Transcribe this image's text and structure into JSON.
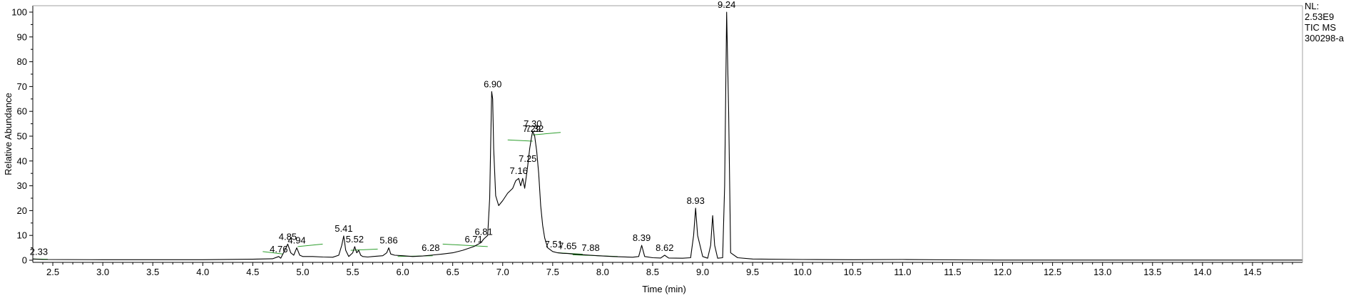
{
  "chart_data": {
    "type": "line",
    "title": "",
    "xlabel": "Time (min)",
    "ylabel": "Relative Abundance",
    "xlim": [
      2.3,
      15.0
    ],
    "ylim": [
      0,
      100
    ],
    "x_ticks": [
      2.5,
      3.0,
      3.5,
      4.0,
      4.5,
      5.0,
      5.5,
      6.0,
      6.5,
      7.0,
      7.5,
      8.0,
      8.5,
      9.0,
      9.5,
      10.0,
      10.5,
      11.0,
      11.5,
      12.0,
      12.5,
      13.0,
      13.5,
      14.0,
      14.5
    ],
    "x_tick_labels": [
      "2.5",
      "3.0",
      "3.5",
      "4.0",
      "4.5",
      "5.0",
      "5.5",
      "6.0",
      "6.5",
      "7.0",
      "7.5",
      "8.0",
      "8.5",
      "9.0",
      "9.5",
      "10.0",
      "10.5",
      "11.0",
      "11.5",
      "12.0",
      "12.5",
      "13.0",
      "13.5",
      "14.0",
      "14.5"
    ],
    "y_ticks": [
      0,
      10,
      20,
      30,
      40,
      50,
      60,
      70,
      80,
      90,
      100
    ],
    "y_tick_labels": [
      "0",
      "10",
      "20",
      "30",
      "40",
      "50",
      "60",
      "70",
      "80",
      "90",
      "100"
    ],
    "grid": false,
    "series": [
      {
        "x": [
          2.3,
          2.4,
          3.0,
          4.0,
          4.5,
          4.7,
          4.76,
          4.78,
          4.82,
          4.85,
          4.88,
          4.91,
          4.94,
          4.97,
          5.0,
          5.1,
          5.2,
          5.3,
          5.36,
          5.39,
          5.41,
          5.43,
          5.46,
          5.5,
          5.52,
          5.54,
          5.56,
          5.58,
          5.6,
          5.65,
          5.7,
          5.8,
          5.84,
          5.86,
          5.88,
          5.92,
          6.0,
          6.1,
          6.2,
          6.28,
          6.4,
          6.5,
          6.6,
          6.71,
          6.78,
          6.81,
          6.85,
          6.87,
          6.89,
          6.9,
          6.91,
          6.93,
          6.96,
          7.0,
          7.05,
          7.1,
          7.13,
          7.16,
          7.18,
          7.2,
          7.22,
          7.25,
          7.27,
          7.29,
          7.3,
          7.32,
          7.34,
          7.36,
          7.38,
          7.4,
          7.42,
          7.45,
          7.5,
          7.55,
          7.6,
          7.65,
          7.7,
          7.8,
          7.88,
          7.95,
          8.1,
          8.3,
          8.36,
          8.39,
          8.42,
          8.5,
          8.58,
          8.62,
          8.66,
          8.8,
          8.88,
          8.91,
          8.93,
          8.95,
          9.0,
          9.05,
          9.08,
          9.1,
          9.12,
          9.15,
          9.2,
          9.22,
          9.24,
          9.26,
          9.28,
          9.35,
          9.5,
          10.0,
          10.5,
          11.0,
          11.5,
          12.0,
          13.0,
          14.0,
          15.0
        ],
        "y": [
          0.5,
          0.3,
          0.2,
          0.2,
          0.4,
          0.6,
          1.5,
          0.8,
          4.0,
          6.5,
          3.0,
          2.0,
          5.0,
          2.0,
          1.5,
          1.5,
          1.3,
          1.2,
          2.0,
          6.0,
          9.8,
          4.0,
          1.5,
          3.0,
          5.5,
          3.0,
          4.0,
          2.0,
          1.5,
          1.3,
          1.5,
          1.8,
          3.0,
          5.0,
          2.5,
          2.0,
          1.8,
          1.5,
          1.7,
          2.0,
          2.5,
          3.0,
          4.0,
          5.5,
          7.0,
          8.5,
          10.0,
          25.0,
          68.0,
          65.0,
          45.0,
          26.0,
          22.0,
          24.0,
          27.0,
          29.0,
          32.0,
          33.0,
          30.0,
          33.0,
          29.0,
          38.0,
          45.0,
          50.0,
          52.0,
          50.0,
          44.0,
          35.0,
          22.0,
          14.0,
          9.0,
          5.0,
          3.5,
          3.0,
          2.8,
          2.7,
          2.5,
          2.2,
          2.0,
          1.8,
          1.5,
          1.2,
          1.5,
          6.0,
          1.5,
          1.0,
          0.9,
          2.0,
          0.9,
          0.8,
          1.0,
          10.0,
          21.0,
          10.0,
          1.5,
          0.8,
          6.0,
          18.0,
          6.0,
          0.8,
          1.0,
          30.0,
          100.0,
          60.0,
          3.0,
          1.0,
          0.5,
          0.3,
          0.2,
          0.3,
          0.15,
          0.05,
          0.05,
          0.05,
          0.05
        ]
      }
    ],
    "peak_labels": [
      {
        "text": "2.33",
        "x": 2.33,
        "y": 0.5
      },
      {
        "text": "4.76",
        "x": 4.76,
        "y": 1.5
      },
      {
        "text": "4.85",
        "x": 4.85,
        "y": 6.5
      },
      {
        "text": "4.94",
        "x": 4.94,
        "y": 5.0
      },
      {
        "text": "5.41",
        "x": 5.41,
        "y": 9.8
      },
      {
        "text": "5.52",
        "x": 5.52,
        "y": 5.5
      },
      {
        "text": "5.86",
        "x": 5.86,
        "y": 5.0
      },
      {
        "text": "6.28",
        "x": 6.28,
        "y": 2.0
      },
      {
        "text": "6.71",
        "x": 6.71,
        "y": 5.5
      },
      {
        "text": "6.81",
        "x": 6.81,
        "y": 8.5
      },
      {
        "text": "6.90",
        "x": 6.9,
        "y": 68.0
      },
      {
        "text": "7.16",
        "x": 7.16,
        "y": 33.0
      },
      {
        "text": "7.25",
        "x": 7.25,
        "y": 38.0
      },
      {
        "text": "7.29",
        "x": 7.29,
        "y": 50.0
      },
      {
        "text": "7.30",
        "x": 7.3,
        "y": 52.0
      },
      {
        "text": "7.32",
        "x": 7.32,
        "y": 50.0
      },
      {
        "text": "7.51",
        "x": 7.51,
        "y": 3.5
      },
      {
        "text": "7.65",
        "x": 7.65,
        "y": 2.7
      },
      {
        "text": "7.88",
        "x": 7.88,
        "y": 2.0
      },
      {
        "text": "8.39",
        "x": 8.39,
        "y": 6.0
      },
      {
        "text": "8.62",
        "x": 8.62,
        "y": 2.0
      },
      {
        "text": "8.93",
        "x": 8.93,
        "y": 21.0
      },
      {
        "text": "9.24",
        "x": 9.24,
        "y": 100.0
      }
    ],
    "baselines": [
      {
        "x": [
          2.3,
          2.45
        ],
        "y": [
          0.5,
          0.4
        ]
      },
      {
        "x": [
          4.6,
          4.8
        ],
        "y": [
          3.5,
          2.5
        ]
      },
      {
        "x": [
          4.95,
          5.2
        ],
        "y": [
          5.5,
          6.5
        ]
      },
      {
        "x": [
          5.48,
          5.75
        ],
        "y": [
          4.0,
          4.5
        ]
      },
      {
        "x": [
          5.95,
          6.3
        ],
        "y": [
          1.5,
          1.8
        ]
      },
      {
        "x": [
          6.4,
          6.85
        ],
        "y": [
          6.5,
          5.5
        ]
      },
      {
        "x": [
          7.05,
          7.3
        ],
        "y": [
          48.5,
          48.0
        ]
      },
      {
        "x": [
          7.3,
          7.58
        ],
        "y": [
          50.5,
          51.5
        ]
      },
      {
        "x": [
          7.55,
          7.8
        ],
        "y": [
          3.0,
          2.4
        ]
      },
      {
        "x": [
          7.7,
          8.15
        ],
        "y": [
          2.2,
          1.5
        ]
      }
    ],
    "series_color": "#000000",
    "baseline_color": "#2e9e2e",
    "info_block": [
      "NL:",
      "2.53E9",
      "TIC  MS",
      "300298-a"
    ]
  }
}
